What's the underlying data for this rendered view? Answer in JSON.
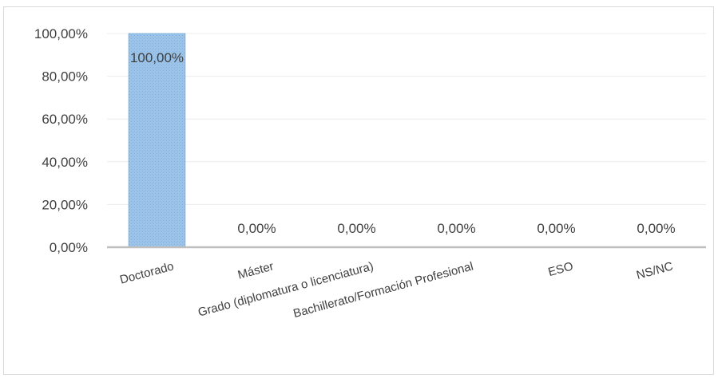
{
  "chart_data": {
    "type": "bar",
    "categories": [
      "Doctorado",
      "Máster",
      "Grado (diplomatura o licenciatura)",
      "Bachillerato/Formación Profesional",
      "ESO",
      "NS/NC"
    ],
    "values": [
      100,
      0,
      0,
      0,
      0,
      0
    ],
    "data_labels": [
      "100,00%",
      "0,00%",
      "0,00%",
      "0,00%",
      "0,00%",
      "0,00%"
    ],
    "yticks": [
      "0,00%",
      "20,00%",
      "40,00%",
      "60,00%",
      "80,00%",
      "100,00%"
    ],
    "ylim": [
      0,
      100
    ],
    "title": "",
    "xlabel": "",
    "ylabel": "",
    "grid": true,
    "legend": "none",
    "colors": {
      "bar": "#9dc3e6",
      "bar_outline": "#5b9bd5",
      "grid": "#ececec",
      "axis": "#bfbfbf",
      "text": "#404040"
    }
  }
}
